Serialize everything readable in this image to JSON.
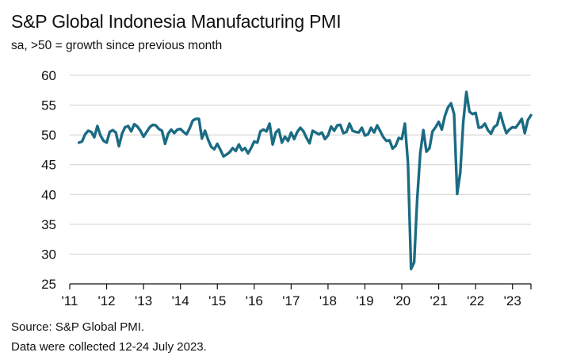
{
  "chart_data": {
    "type": "line",
    "title": "S&P Global Indonesia Manufacturing PMI",
    "subtitle": "sa, >50 = growth since previous month",
    "ylim": [
      25,
      60
    ],
    "yticks": [
      25,
      30,
      35,
      40,
      45,
      50,
      55,
      60
    ],
    "xlim": [
      "2011-01",
      "2023-07"
    ],
    "xticks": [
      {
        "date": "2011-01",
        "label": "'11"
      },
      {
        "date": "2012-01",
        "label": "'12"
      },
      {
        "date": "2013-01",
        "label": "'13"
      },
      {
        "date": "2014-01",
        "label": "'14"
      },
      {
        "date": "2015-01",
        "label": "'15"
      },
      {
        "date": "2016-01",
        "label": "'16"
      },
      {
        "date": "2017-01",
        "label": "'17"
      },
      {
        "date": "2018-01",
        "label": "'18"
      },
      {
        "date": "2019-01",
        "label": "'19"
      },
      {
        "date": "2020-01",
        "label": "'20"
      },
      {
        "date": "2021-01",
        "label": "'21"
      },
      {
        "date": "2022-01",
        "label": "'22"
      },
      {
        "date": "2023-01",
        "label": "'23"
      }
    ],
    "grid": "horizontal",
    "line_color": "#1a6b83",
    "series": [
      {
        "x": [
          "2011-04",
          "2011-05",
          "2011-06",
          "2011-07",
          "2011-08",
          "2011-09",
          "2011-10",
          "2011-11",
          "2011-12",
          "2012-01",
          "2012-02",
          "2012-03",
          "2012-04",
          "2012-05",
          "2012-06",
          "2012-07",
          "2012-08",
          "2012-09",
          "2012-10",
          "2012-11",
          "2012-12",
          "2013-01",
          "2013-02",
          "2013-03",
          "2013-04",
          "2013-05",
          "2013-06",
          "2013-07",
          "2013-08",
          "2013-09",
          "2013-10",
          "2013-11",
          "2013-12",
          "2014-01",
          "2014-02",
          "2014-03",
          "2014-04",
          "2014-05",
          "2014-06",
          "2014-07",
          "2014-08",
          "2014-09",
          "2014-10",
          "2014-11",
          "2014-12",
          "2015-01",
          "2015-02",
          "2015-03",
          "2015-04",
          "2015-05",
          "2015-06",
          "2015-07",
          "2015-08",
          "2015-09",
          "2015-10",
          "2015-11",
          "2015-12",
          "2016-01",
          "2016-02",
          "2016-03",
          "2016-04",
          "2016-05",
          "2016-06",
          "2016-07",
          "2016-08",
          "2016-09",
          "2016-10",
          "2016-11",
          "2016-12",
          "2017-01",
          "2017-02",
          "2017-03",
          "2017-04",
          "2017-05",
          "2017-06",
          "2017-07",
          "2017-08",
          "2017-09",
          "2017-10",
          "2017-11",
          "2017-12",
          "2018-01",
          "2018-02",
          "2018-03",
          "2018-04",
          "2018-05",
          "2018-06",
          "2018-07",
          "2018-08",
          "2018-09",
          "2018-10",
          "2018-11",
          "2018-12",
          "2019-01",
          "2019-02",
          "2019-03",
          "2019-04",
          "2019-05",
          "2019-06",
          "2019-07",
          "2019-08",
          "2019-09",
          "2019-10",
          "2019-11",
          "2019-12",
          "2020-01",
          "2020-02",
          "2020-03",
          "2020-04",
          "2020-05",
          "2020-06",
          "2020-07",
          "2020-08",
          "2020-09",
          "2020-10",
          "2020-11",
          "2020-12",
          "2021-01",
          "2021-02",
          "2021-03",
          "2021-04",
          "2021-05",
          "2021-06",
          "2021-07",
          "2021-08",
          "2021-09",
          "2021-10",
          "2021-11",
          "2021-12",
          "2022-01",
          "2022-02",
          "2022-03",
          "2022-04",
          "2022-05",
          "2022-06",
          "2022-07",
          "2022-08",
          "2022-09",
          "2022-10",
          "2022-11",
          "2022-12",
          "2023-01",
          "2023-02",
          "2023-03",
          "2023-04",
          "2023-05",
          "2023-06",
          "2023-07"
        ],
        "values": [
          48.7,
          48.9,
          50.1,
          50.7,
          50.5,
          49.6,
          51.5,
          49.9,
          49.0,
          48.7,
          50.5,
          50.8,
          50.4,
          48.1,
          50.2,
          51.3,
          51.5,
          50.6,
          51.8,
          51.4,
          50.7,
          49.7,
          50.5,
          51.3,
          51.7,
          51.6,
          51.0,
          50.7,
          48.5,
          50.2,
          50.9,
          50.3,
          50.9,
          51.0,
          50.5,
          50.1,
          51.1,
          52.4,
          52.7,
          52.7,
          49.4,
          50.7,
          49.2,
          48.0,
          47.6,
          48.5,
          47.5,
          46.4,
          46.7,
          47.1,
          47.8,
          47.3,
          48.4,
          47.4,
          47.8,
          46.9,
          47.8,
          48.9,
          48.7,
          50.6,
          50.9,
          50.6,
          51.9,
          48.4,
          50.4,
          50.9,
          48.7,
          49.7,
          49.0,
          50.4,
          49.3,
          50.5,
          51.2,
          50.6,
          49.5,
          48.6,
          50.7,
          50.4,
          50.1,
          50.4,
          49.3,
          49.9,
          51.4,
          50.7,
          51.6,
          51.7,
          50.3,
          50.5,
          51.9,
          50.7,
          50.5,
          50.4,
          51.2,
          49.9,
          50.1,
          51.2,
          50.4,
          51.6,
          50.6,
          49.6,
          49.0,
          49.1,
          47.7,
          48.2,
          49.5,
          49.3,
          51.9,
          45.3,
          27.5,
          28.6,
          39.1,
          46.9,
          50.8,
          47.2,
          47.8,
          50.6,
          51.3,
          52.2,
          50.9,
          53.2,
          54.6,
          55.3,
          53.5,
          40.1,
          43.7,
          52.2,
          57.2,
          53.9,
          53.5,
          53.7,
          51.2,
          51.3,
          51.9,
          50.8,
          50.2,
          51.3,
          51.7,
          53.7,
          51.8,
          50.3,
          50.9,
          51.3,
          51.2,
          51.9,
          52.7,
          50.3,
          52.5,
          53.3
        ]
      }
    ]
  },
  "source": {
    "line1": "Source: S&P Global PMI.",
    "line2": "Data were collected 12-24 July 2023."
  }
}
